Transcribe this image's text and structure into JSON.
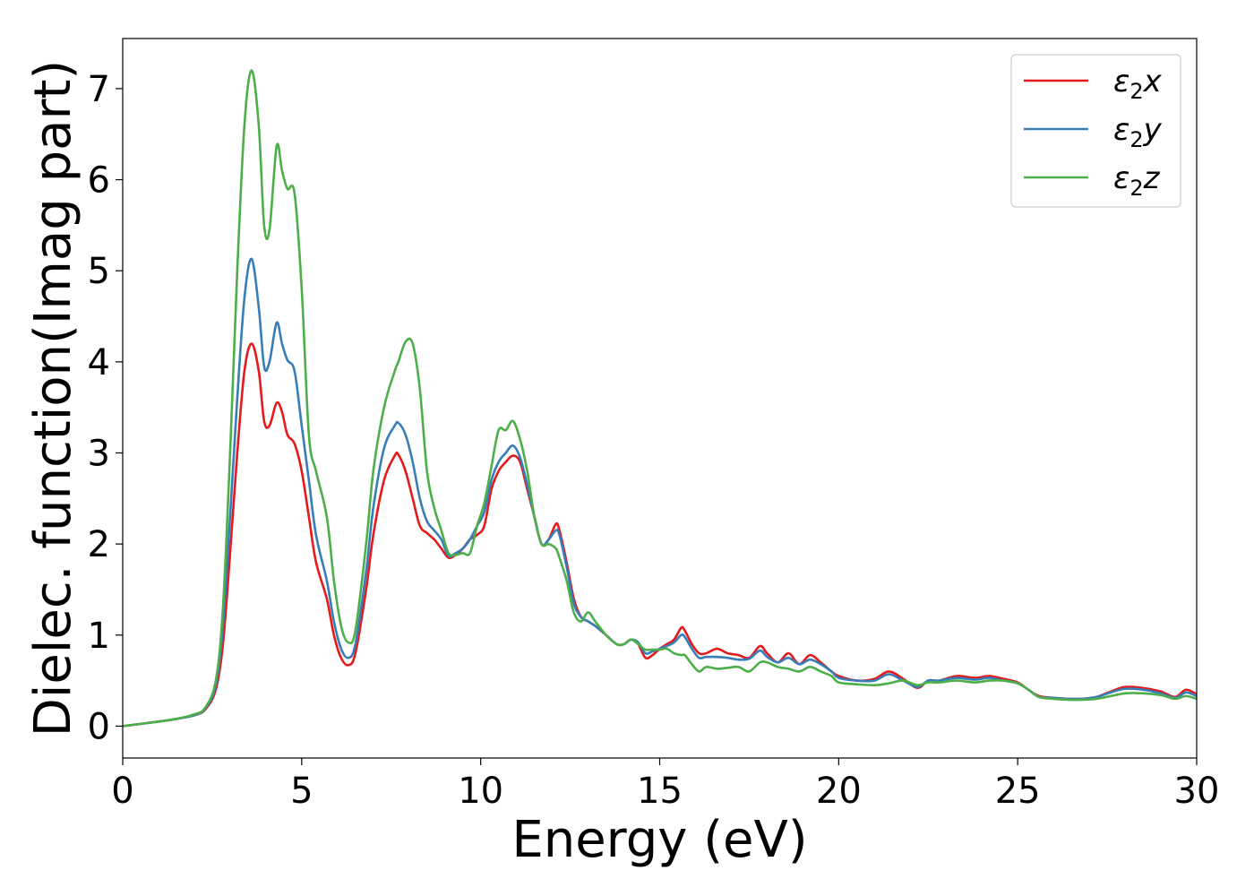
{
  "chart_data": {
    "type": "line",
    "xlabel": "Energy (eV)",
    "ylabel": "Dielec. function(Imag part)",
    "xlim": [
      0,
      30
    ],
    "ylim": [
      -0.35,
      7.55
    ],
    "xticks": [
      0,
      5,
      10,
      15,
      20,
      25,
      30
    ],
    "yticks": [
      0,
      1,
      2,
      3,
      4,
      5,
      6,
      7
    ],
    "grid": false,
    "legend_position": "top-right",
    "series": [
      {
        "name": "ε₂x",
        "legend_base": "ε",
        "legend_sub": "2",
        "legend_suffix": "x",
        "color": "#e41a1c",
        "x": [
          0,
          1,
          1.5,
          2,
          2.3,
          2.6,
          2.8,
          3.0,
          3.2,
          3.4,
          3.6,
          3.8,
          3.95,
          4.1,
          4.3,
          4.45,
          4.6,
          4.8,
          5.0,
          5.2,
          5.4,
          5.7,
          5.9,
          6.1,
          6.3,
          6.5,
          6.8,
          7.0,
          7.3,
          7.6,
          7.7,
          7.9,
          8.1,
          8.3,
          8.5,
          8.7,
          8.9,
          9.1,
          9.3,
          9.5,
          9.7,
          9.9,
          10.1,
          10.3,
          10.5,
          10.7,
          10.9,
          11.1,
          11.3,
          11.5,
          11.7,
          11.9,
          12.1,
          12.2,
          12.4,
          12.6,
          12.8,
          13.0,
          13.2,
          13.5,
          13.8,
          14.0,
          14.2,
          14.4,
          14.6,
          14.8,
          15.0,
          15.2,
          15.4,
          15.6,
          15.7,
          15.9,
          16.1,
          16.3,
          16.6,
          16.9,
          17.2,
          17.5,
          17.8,
          18.0,
          18.3,
          18.6,
          18.9,
          19.2,
          19.5,
          19.8,
          20.0,
          20.5,
          21.0,
          21.4,
          21.8,
          22.2,
          22.5,
          22.8,
          23.3,
          23.8,
          24.2,
          24.6,
          25.0,
          25.3,
          25.6,
          26.0,
          26.4,
          26.8,
          27.2,
          27.6,
          28.0,
          28.5,
          29.0,
          29.4,
          29.7,
          30.0
        ],
        "values": [
          0.0,
          0.05,
          0.08,
          0.12,
          0.18,
          0.4,
          0.9,
          1.9,
          3.0,
          3.9,
          4.2,
          3.9,
          3.35,
          3.3,
          3.55,
          3.45,
          3.2,
          3.1,
          2.8,
          2.3,
          1.8,
          1.4,
          1.0,
          0.75,
          0.67,
          0.8,
          1.5,
          2.1,
          2.7,
          2.97,
          2.98,
          2.8,
          2.5,
          2.2,
          2.12,
          2.05,
          1.95,
          1.85,
          1.88,
          1.95,
          2.05,
          2.1,
          2.2,
          2.6,
          2.8,
          2.9,
          2.97,
          2.9,
          2.6,
          2.3,
          2.0,
          2.05,
          2.22,
          2.15,
          1.8,
          1.4,
          1.2,
          1.15,
          1.1,
          1.0,
          0.9,
          0.9,
          0.95,
          0.9,
          0.75,
          0.78,
          0.85,
          0.9,
          0.95,
          1.08,
          1.05,
          0.9,
          0.8,
          0.8,
          0.85,
          0.8,
          0.78,
          0.75,
          0.88,
          0.8,
          0.7,
          0.8,
          0.68,
          0.78,
          0.7,
          0.6,
          0.55,
          0.5,
          0.52,
          0.6,
          0.52,
          0.42,
          0.5,
          0.5,
          0.55,
          0.53,
          0.55,
          0.52,
          0.48,
          0.4,
          0.33,
          0.31,
          0.3,
          0.3,
          0.32,
          0.38,
          0.43,
          0.42,
          0.38,
          0.32,
          0.4,
          0.35
        ]
      },
      {
        "name": "ε₂y",
        "legend_base": "ε",
        "legend_sub": "2",
        "legend_suffix": "y",
        "color": "#377eb8",
        "x": [
          0,
          1,
          1.5,
          2,
          2.3,
          2.6,
          2.8,
          3.0,
          3.2,
          3.4,
          3.6,
          3.8,
          3.95,
          4.1,
          4.3,
          4.45,
          4.6,
          4.8,
          5.0,
          5.2,
          5.4,
          5.7,
          5.9,
          6.1,
          6.3,
          6.5,
          6.8,
          7.0,
          7.3,
          7.6,
          7.7,
          7.9,
          8.1,
          8.3,
          8.5,
          8.7,
          8.9,
          9.1,
          9.3,
          9.5,
          9.7,
          9.9,
          10.1,
          10.3,
          10.5,
          10.7,
          10.9,
          11.1,
          11.3,
          11.5,
          11.7,
          11.9,
          12.1,
          12.2,
          12.4,
          12.6,
          12.8,
          13.0,
          13.2,
          13.5,
          13.8,
          14.0,
          14.2,
          14.4,
          14.6,
          14.8,
          15.0,
          15.2,
          15.4,
          15.6,
          15.7,
          15.9,
          16.1,
          16.3,
          16.6,
          16.9,
          17.2,
          17.5,
          17.8,
          18.0,
          18.3,
          18.6,
          18.9,
          19.2,
          19.5,
          19.8,
          20.0,
          20.5,
          21.0,
          21.4,
          21.8,
          22.2,
          22.5,
          22.8,
          23.3,
          23.8,
          24.2,
          24.6,
          25.0,
          25.3,
          25.6,
          26.0,
          26.4,
          26.8,
          27.2,
          27.6,
          28.0,
          28.5,
          29.0,
          29.4,
          29.7,
          30.0
        ],
        "values": [
          0.0,
          0.05,
          0.08,
          0.12,
          0.19,
          0.45,
          1.1,
          2.3,
          3.6,
          4.7,
          5.13,
          4.6,
          3.95,
          4.0,
          4.43,
          4.2,
          4.02,
          3.9,
          3.3,
          2.7,
          2.1,
          1.6,
          1.15,
          0.85,
          0.75,
          0.9,
          1.7,
          2.4,
          3.05,
          3.3,
          3.33,
          3.2,
          2.9,
          2.5,
          2.25,
          2.15,
          2.05,
          1.87,
          1.9,
          1.95,
          2.05,
          2.2,
          2.35,
          2.7,
          2.9,
          3.0,
          3.08,
          2.95,
          2.65,
          2.3,
          2.0,
          2.05,
          2.15,
          2.1,
          1.75,
          1.35,
          1.2,
          1.15,
          1.1,
          1.0,
          0.9,
          0.9,
          0.95,
          0.92,
          0.8,
          0.82,
          0.85,
          0.88,
          0.92,
          1.0,
          0.98,
          0.85,
          0.75,
          0.76,
          0.76,
          0.75,
          0.73,
          0.74,
          0.83,
          0.76,
          0.7,
          0.75,
          0.68,
          0.73,
          0.68,
          0.6,
          0.53,
          0.5,
          0.5,
          0.57,
          0.5,
          0.43,
          0.5,
          0.5,
          0.53,
          0.51,
          0.53,
          0.5,
          0.47,
          0.4,
          0.32,
          0.31,
          0.3,
          0.3,
          0.32,
          0.37,
          0.41,
          0.4,
          0.36,
          0.31,
          0.37,
          0.33
        ]
      },
      {
        "name": "ε₂z",
        "legend_base": "ε",
        "legend_sub": "2",
        "legend_suffix": "z",
        "color": "#4daf4a",
        "x": [
          0,
          1,
          1.5,
          2,
          2.3,
          2.6,
          2.8,
          3.0,
          3.2,
          3.4,
          3.6,
          3.8,
          3.95,
          4.1,
          4.3,
          4.45,
          4.6,
          4.8,
          5.0,
          5.2,
          5.4,
          5.7,
          5.9,
          6.1,
          6.3,
          6.5,
          6.8,
          7.0,
          7.3,
          7.6,
          7.7,
          7.9,
          8.1,
          8.3,
          8.5,
          8.7,
          8.9,
          9.1,
          9.3,
          9.5,
          9.7,
          9.9,
          10.1,
          10.3,
          10.5,
          10.7,
          10.9,
          11.1,
          11.3,
          11.5,
          11.7,
          11.9,
          12.1,
          12.2,
          12.4,
          12.6,
          12.8,
          13.0,
          13.2,
          13.5,
          13.8,
          14.0,
          14.2,
          14.4,
          14.6,
          14.8,
          15.0,
          15.2,
          15.4,
          15.6,
          15.7,
          15.9,
          16.1,
          16.3,
          16.6,
          16.9,
          17.2,
          17.5,
          17.8,
          18.0,
          18.3,
          18.6,
          18.9,
          19.2,
          19.5,
          19.8,
          20.0,
          20.5,
          21.0,
          21.4,
          21.8,
          22.2,
          22.5,
          22.8,
          23.3,
          23.8,
          24.2,
          24.6,
          25.0,
          25.3,
          25.6,
          26.0,
          26.4,
          26.8,
          27.2,
          27.6,
          28.0,
          28.5,
          29.0,
          29.4,
          29.7,
          30.0
        ],
        "values": [
          0.0,
          0.05,
          0.08,
          0.13,
          0.2,
          0.5,
          1.3,
          3.0,
          5.0,
          6.6,
          7.2,
          6.6,
          5.5,
          5.45,
          6.37,
          6.1,
          5.9,
          5.85,
          4.8,
          3.2,
          2.8,
          2.3,
          1.6,
          1.1,
          0.92,
          1.05,
          2.0,
          2.8,
          3.5,
          3.9,
          4.0,
          4.22,
          4.2,
          3.7,
          2.8,
          2.4,
          2.15,
          1.9,
          1.88,
          1.9,
          1.9,
          2.2,
          2.45,
          2.85,
          3.25,
          3.25,
          3.35,
          3.15,
          2.8,
          2.3,
          2.0,
          2.0,
          1.95,
          1.85,
          1.6,
          1.25,
          1.15,
          1.25,
          1.15,
          1.0,
          0.9,
          0.9,
          0.95,
          0.9,
          0.84,
          0.84,
          0.84,
          0.85,
          0.8,
          0.78,
          0.78,
          0.68,
          0.6,
          0.65,
          0.63,
          0.64,
          0.65,
          0.6,
          0.7,
          0.7,
          0.65,
          0.63,
          0.6,
          0.65,
          0.6,
          0.55,
          0.48,
          0.46,
          0.45,
          0.47,
          0.5,
          0.45,
          0.48,
          0.48,
          0.5,
          0.48,
          0.5,
          0.5,
          0.47,
          0.4,
          0.32,
          0.3,
          0.29,
          0.29,
          0.3,
          0.33,
          0.36,
          0.36,
          0.34,
          0.3,
          0.33,
          0.3
        ]
      }
    ]
  }
}
